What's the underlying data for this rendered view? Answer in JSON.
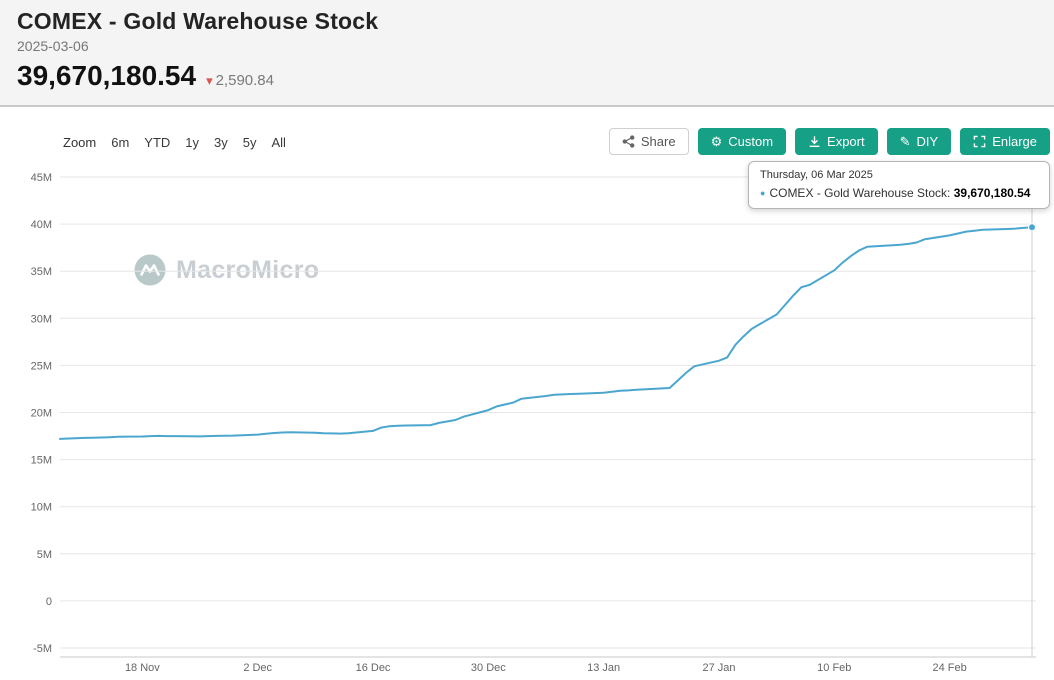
{
  "header": {
    "title": "COMEX - Gold Warehouse Stock",
    "date": "2025-03-06",
    "value": "39,670,180.54",
    "change": "2,590.84",
    "change_direction": "down",
    "change_triangle": "▾"
  },
  "toolbar": {
    "zoom_label": "Zoom",
    "ranges": [
      "6m",
      "YTD",
      "1y",
      "3y",
      "5y",
      "All"
    ],
    "share_label": "Share",
    "custom_label": "Custom",
    "export_label": "Export",
    "diy_label": "DIY",
    "enlarge_label": "Enlarge"
  },
  "tooltip": {
    "date": "Thursday, 06 Mar 2025",
    "series_label": "COMEX - Gold Warehouse Stock:",
    "value": "39,670,180.54",
    "marker": "●"
  },
  "watermark": {
    "text": "MacroMicro"
  },
  "colors": {
    "accent_teal": "#16a085",
    "line_blue": "#4ba6cf",
    "change_red": "#d9534f",
    "grid": "#e6e6e6",
    "axis_text": "#666666"
  },
  "chart_data": {
    "type": "line",
    "title": "COMEX - Gold Warehouse Stock",
    "xlabel": "",
    "ylabel": "",
    "ylim": [
      -5000000,
      45000000
    ],
    "grid": "horizontal",
    "legend": "none",
    "x_range": [
      "2024-11-08",
      "2025-03-06"
    ],
    "y_ticks": [
      {
        "label": "45M",
        "value": 45000000
      },
      {
        "label": "40M",
        "value": 40000000
      },
      {
        "label": "35M",
        "value": 35000000
      },
      {
        "label": "30M",
        "value": 30000000
      },
      {
        "label": "25M",
        "value": 25000000
      },
      {
        "label": "20M",
        "value": 20000000
      },
      {
        "label": "15M",
        "value": 15000000
      },
      {
        "label": "10M",
        "value": 10000000
      },
      {
        "label": "5M",
        "value": 5000000
      },
      {
        "label": "0",
        "value": 0
      },
      {
        "label": "-5M",
        "value": -5000000
      }
    ],
    "x_ticks": [
      {
        "label": "18 Nov",
        "date": "2024-11-18"
      },
      {
        "label": "2 Dec",
        "date": "2024-12-02"
      },
      {
        "label": "16 Dec",
        "date": "2024-12-16"
      },
      {
        "label": "30 Dec",
        "date": "2024-12-30"
      },
      {
        "label": "13 Jan",
        "date": "2025-01-13"
      },
      {
        "label": "27 Jan",
        "date": "2025-01-27"
      },
      {
        "label": "10 Feb",
        "date": "2025-02-10"
      },
      {
        "label": "24 Feb",
        "date": "2025-02-24"
      }
    ],
    "series": [
      {
        "name": "COMEX - Gold Warehouse Stock",
        "color": "#4ba6cf",
        "points": [
          [
            "2024-11-08",
            17200000
          ],
          [
            "2024-11-11",
            17300000
          ],
          [
            "2024-11-12",
            17320000
          ],
          [
            "2024-11-13",
            17350000
          ],
          [
            "2024-11-14",
            17380000
          ],
          [
            "2024-11-15",
            17420000
          ],
          [
            "2024-11-18",
            17450000
          ],
          [
            "2024-11-19",
            17500000
          ],
          [
            "2024-11-20",
            17520000
          ],
          [
            "2024-11-21",
            17500000
          ],
          [
            "2024-11-22",
            17500000
          ],
          [
            "2024-11-25",
            17460000
          ],
          [
            "2024-11-26",
            17500000
          ],
          [
            "2024-11-27",
            17520000
          ],
          [
            "2024-11-29",
            17550000
          ],
          [
            "2024-12-02",
            17650000
          ],
          [
            "2024-12-03",
            17750000
          ],
          [
            "2024-12-04",
            17820000
          ],
          [
            "2024-12-05",
            17880000
          ],
          [
            "2024-12-06",
            17900000
          ],
          [
            "2024-12-09",
            17850000
          ],
          [
            "2024-12-10",
            17800000
          ],
          [
            "2024-12-11",
            17780000
          ],
          [
            "2024-12-12",
            17760000
          ],
          [
            "2024-12-13",
            17800000
          ],
          [
            "2024-12-16",
            18050000
          ],
          [
            "2024-12-17",
            18400000
          ],
          [
            "2024-12-18",
            18550000
          ],
          [
            "2024-12-19",
            18600000
          ],
          [
            "2024-12-20",
            18620000
          ],
          [
            "2024-12-23",
            18660000
          ],
          [
            "2024-12-24",
            18900000
          ],
          [
            "2024-12-26",
            19200000
          ],
          [
            "2024-12-27",
            19550000
          ],
          [
            "2024-12-30",
            20250000
          ],
          [
            "2024-12-31",
            20650000
          ],
          [
            "2025-01-02",
            21050000
          ],
          [
            "2025-01-03",
            21450000
          ],
          [
            "2025-01-06",
            21750000
          ],
          [
            "2025-01-07",
            21880000
          ],
          [
            "2025-01-08",
            21920000
          ],
          [
            "2025-01-09",
            21960000
          ],
          [
            "2025-01-10",
            22000000
          ],
          [
            "2025-01-13",
            22100000
          ],
          [
            "2025-01-14",
            22200000
          ],
          [
            "2025-01-15",
            22300000
          ],
          [
            "2025-01-16",
            22350000
          ],
          [
            "2025-01-17",
            22420000
          ],
          [
            "2025-01-21",
            22600000
          ],
          [
            "2025-01-22",
            23400000
          ],
          [
            "2025-01-23",
            24200000
          ],
          [
            "2025-01-24",
            24900000
          ],
          [
            "2025-01-27",
            25500000
          ],
          [
            "2025-01-28",
            25850000
          ],
          [
            "2025-01-29",
            27200000
          ],
          [
            "2025-01-30",
            28100000
          ],
          [
            "2025-01-31",
            28900000
          ],
          [
            "2025-02-03",
            30400000
          ],
          [
            "2025-02-04",
            31400000
          ],
          [
            "2025-02-05",
            32400000
          ],
          [
            "2025-02-06",
            33300000
          ],
          [
            "2025-02-07",
            33550000
          ],
          [
            "2025-02-10",
            35100000
          ],
          [
            "2025-02-11",
            35900000
          ],
          [
            "2025-02-12",
            36600000
          ],
          [
            "2025-02-13",
            37200000
          ],
          [
            "2025-02-14",
            37600000
          ],
          [
            "2025-02-18",
            37800000
          ],
          [
            "2025-02-19",
            37900000
          ],
          [
            "2025-02-20",
            38050000
          ],
          [
            "2025-02-21",
            38400000
          ],
          [
            "2025-02-24",
            38800000
          ],
          [
            "2025-02-25",
            39000000
          ],
          [
            "2025-02-26",
            39200000
          ],
          [
            "2025-02-27",
            39300000
          ],
          [
            "2025-02-28",
            39400000
          ],
          [
            "2025-03-03",
            39480000
          ],
          [
            "2025-03-04",
            39520000
          ],
          [
            "2025-03-05",
            39600000
          ],
          [
            "2025-03-06",
            39670180.54
          ]
        ]
      }
    ]
  }
}
